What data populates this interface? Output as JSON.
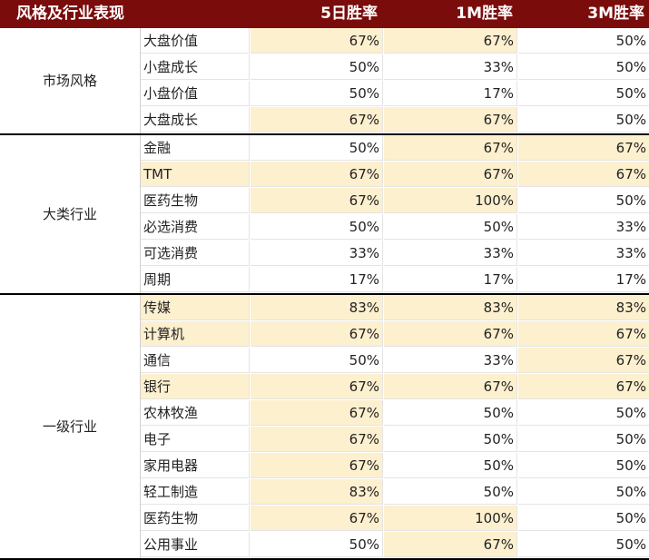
{
  "header": {
    "col0": "风格及行业表现",
    "col1": "5日胜率",
    "col2": "1M胜率",
    "col3": "3M胜率"
  },
  "groups": [
    {
      "label": "市场风格",
      "rows": [
        {
          "name": "大盘价值",
          "v1": "67%",
          "v2": "67%",
          "v3": "50%"
        },
        {
          "name": "小盘成长",
          "v1": "50%",
          "v2": "33%",
          "v3": "50%"
        },
        {
          "name": "小盘价值",
          "v1": "50%",
          "v2": "17%",
          "v3": "50%"
        },
        {
          "name": "大盘成长",
          "v1": "67%",
          "v2": "67%",
          "v3": "50%"
        }
      ]
    },
    {
      "label": "大类行业",
      "rows": [
        {
          "name": "金融",
          "v1": "50%",
          "v2": "67%",
          "v3": "67%"
        },
        {
          "name": "TMT",
          "v1": "67%",
          "v2": "67%",
          "v3": "67%"
        },
        {
          "name": "医药生物",
          "v1": "67%",
          "v2": "100%",
          "v3": "50%"
        },
        {
          "name": "必选消费",
          "v1": "50%",
          "v2": "50%",
          "v3": "33%"
        },
        {
          "name": "可选消费",
          "v1": "33%",
          "v2": "33%",
          "v3": "33%"
        },
        {
          "name": "周期",
          "v1": "17%",
          "v2": "17%",
          "v3": "17%"
        }
      ]
    },
    {
      "label": "一级行业",
      "rows": [
        {
          "name": "传媒",
          "v1": "83%",
          "v2": "83%",
          "v3": "83%"
        },
        {
          "name": "计算机",
          "v1": "67%",
          "v2": "67%",
          "v3": "67%"
        },
        {
          "name": "通信",
          "v1": "50%",
          "v2": "33%",
          "v3": "67%"
        },
        {
          "name": "银行",
          "v1": "67%",
          "v2": "67%",
          "v3": "67%"
        },
        {
          "name": "农林牧渔",
          "v1": "67%",
          "v2": "50%",
          "v3": "50%"
        },
        {
          "name": "电子",
          "v1": "67%",
          "v2": "50%",
          "v3": "50%"
        },
        {
          "name": "家用电器",
          "v1": "67%",
          "v2": "50%",
          "v3": "50%"
        },
        {
          "name": "轻工制造",
          "v1": "83%",
          "v2": "50%",
          "v3": "50%"
        },
        {
          "name": "医药生物",
          "v1": "67%",
          "v2": "100%",
          "v3": "50%"
        },
        {
          "name": "公用事业",
          "v1": "50%",
          "v2": "67%",
          "v3": "50%"
        }
      ]
    }
  ],
  "colors": {
    "header_bg": "#7b0c0c",
    "highlight": "#fdf0cf"
  }
}
